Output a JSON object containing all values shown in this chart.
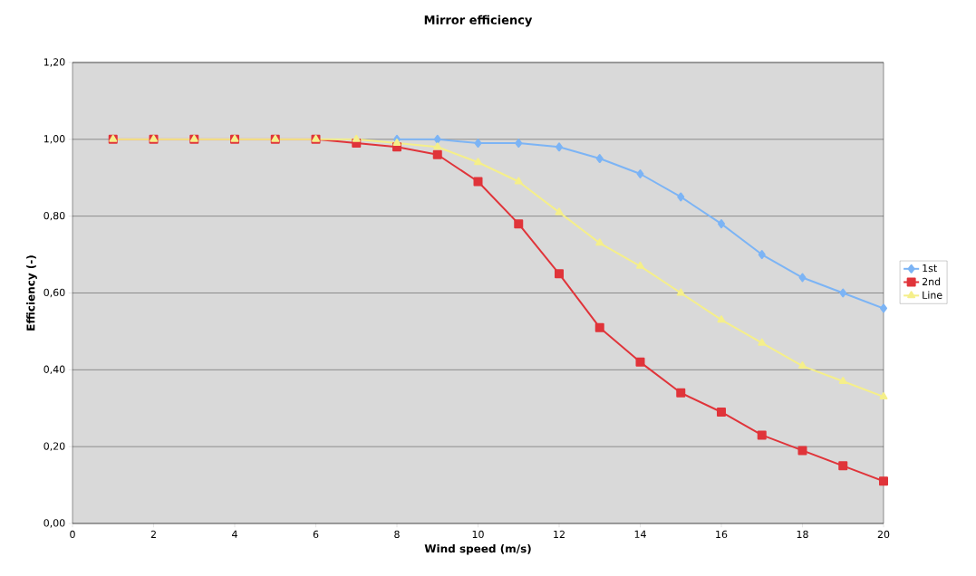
{
  "chart_data": {
    "type": "line",
    "title": "Mirror efficiency",
    "xlabel": "Wind speed (m/s)",
    "ylabel": "Efficiency (-)",
    "x": [
      1,
      2,
      3,
      4,
      5,
      6,
      7,
      8,
      9,
      10,
      11,
      12,
      13,
      14,
      15,
      16,
      17,
      18,
      19,
      20
    ],
    "series": [
      {
        "name": "1st",
        "color": "#7cb4f5",
        "marker": "diamond",
        "values": [
          null,
          null,
          null,
          null,
          null,
          null,
          null,
          1,
          1,
          0.99,
          0.99,
          0.98,
          0.95,
          0.91,
          0.85,
          0.78,
          0.7,
          0.64,
          0.6,
          0.56
        ]
      },
      {
        "name": "2nd",
        "color": "#e0343a",
        "marker": "square",
        "values": [
          1,
          1,
          1,
          1,
          1,
          1,
          0.99,
          0.98,
          0.96,
          0.89,
          0.78,
          0.65,
          0.51,
          0.42,
          0.34,
          0.29,
          0.23,
          0.19,
          0.15,
          0.11
        ]
      },
      {
        "name": "Line",
        "color": "#f5ef8a",
        "marker": "triangle",
        "values": [
          1,
          1,
          1,
          1,
          1,
          1,
          1,
          0.99,
          0.98,
          0.94,
          0.89,
          0.81,
          0.73,
          0.67,
          0.6,
          0.53,
          0.47,
          0.41,
          0.37,
          0.33
        ]
      }
    ],
    "xlim": [
      0,
      20
    ],
    "xticks": [
      0,
      2,
      4,
      6,
      8,
      10,
      12,
      14,
      16,
      18,
      20
    ],
    "ylim": [
      0,
      1.2
    ],
    "yticks": [
      {
        "value": 0,
        "label": "0,00"
      },
      {
        "value": 0.2,
        "label": "0,20"
      },
      {
        "value": 0.4,
        "label": "0,40"
      },
      {
        "value": 0.6,
        "label": "0,60"
      },
      {
        "value": 0.8,
        "label": "0,80"
      },
      {
        "value": 1.0,
        "label": "1,00"
      },
      {
        "value": 1.2,
        "label": "1,20"
      }
    ],
    "grid": "y",
    "legend": "right",
    "line_style": "solid"
  }
}
